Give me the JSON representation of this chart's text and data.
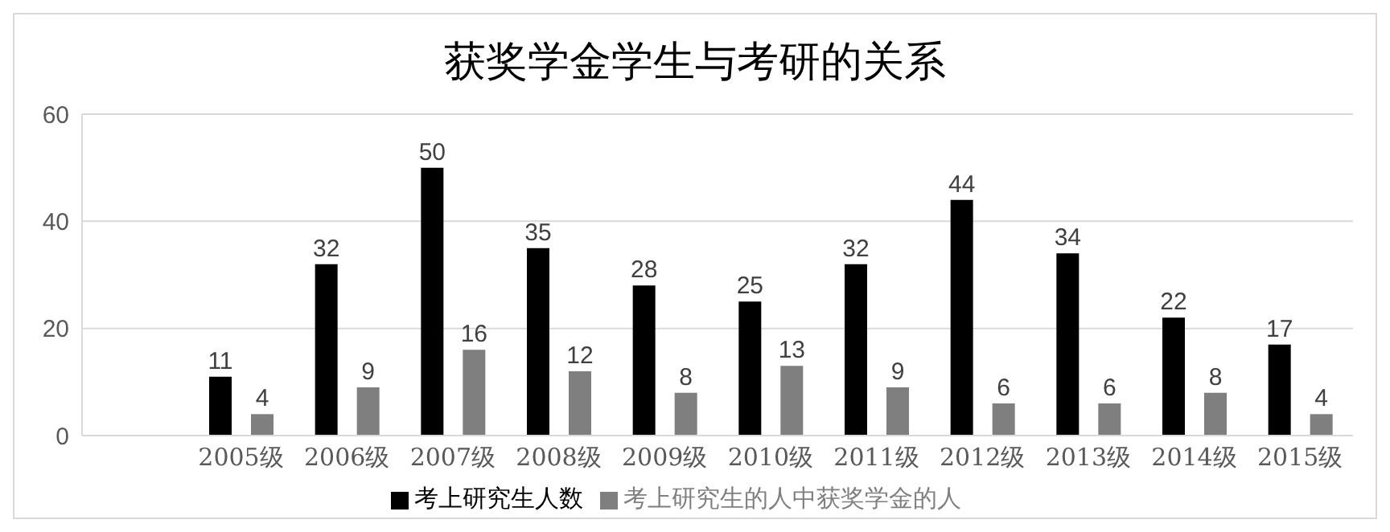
{
  "chart_data": {
    "type": "bar",
    "title": "获奖学金学生与考研的关系",
    "categories": [
      null,
      "2005级",
      "2006级",
      "2007级",
      "2008级",
      "2009级",
      "2010级",
      "2011级",
      "2012级",
      "2013级",
      "2014级",
      "2015级"
    ],
    "series": [
      {
        "name": "考上研究生人数",
        "color": "#000000",
        "values": [
          null,
          11,
          32,
          50,
          35,
          28,
          25,
          32,
          44,
          34,
          22,
          17
        ]
      },
      {
        "name": "考上研究生的人中获奖学金的人",
        "color": "#7f7f7f",
        "values": [
          null,
          4,
          9,
          16,
          12,
          8,
          13,
          9,
          6,
          6,
          8,
          4
        ]
      }
    ],
    "ylim": [
      0,
      60
    ],
    "yticks": [
      0,
      20,
      40,
      60
    ],
    "grid": "y",
    "legend": "bottom",
    "data_labels": true
  }
}
